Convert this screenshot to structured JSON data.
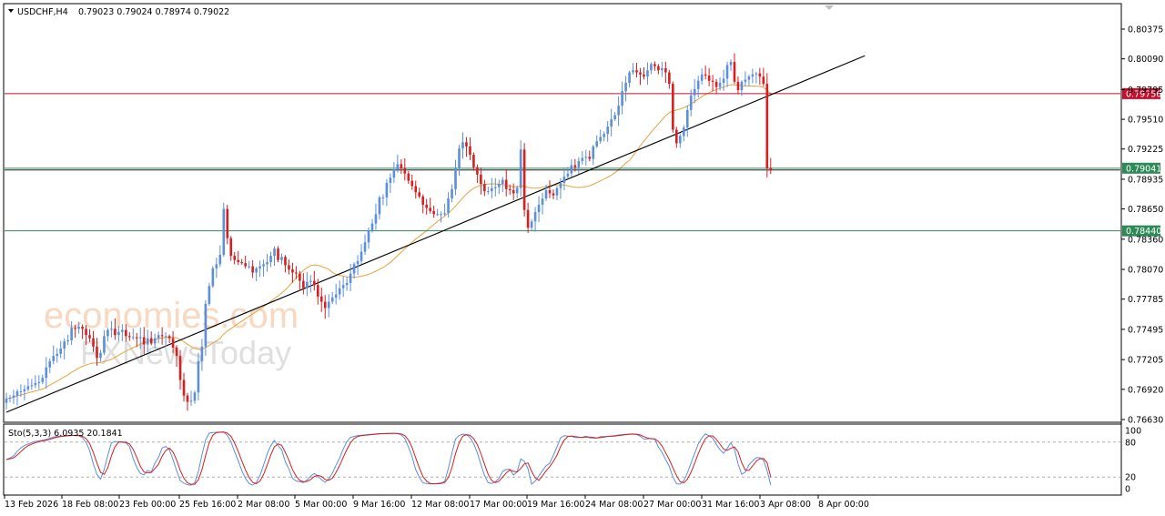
{
  "chart_data": [
    {
      "type": "candlestick",
      "symbol": "USDCHF,H4",
      "ohlc_header": "0.79023 0.79024 0.78974 0.79022",
      "x_tick_labels": [
        "13 Feb 2026",
        "18 Feb 08:00",
        "23 Feb 00:00",
        "25 Feb 16:00",
        "2 Mar 08:00",
        "5 Mar 00:00",
        "9 Mar 16:00",
        "12 Mar 08:00",
        "17 Mar 00:00",
        "19 Mar 16:00",
        "24 Mar 08:00",
        "27 Mar 00:00",
        "31 Mar 16:00",
        "3 Apr 08:00",
        "8 Apr 00:00"
      ],
      "y_tick_labels": [
        "0.80375",
        "0.80090",
        "0.79795",
        "0.79510",
        "0.79225",
        "0.78935",
        "0.78650",
        "0.78360",
        "0.78070",
        "0.77785",
        "0.77495",
        "0.77205",
        "0.76920",
        "0.76630"
      ],
      "ylim": [
        0.7663,
        0.8045
      ],
      "horizontal_levels": [
        {
          "label": "0.79756",
          "value": 0.79756,
          "color": "#c8102e"
        },
        {
          "label": "0.79041",
          "value": 0.79041,
          "color": "#2e8b57"
        },
        {
          "label": "0.78440",
          "value": 0.7844,
          "color": "#2e8b57"
        }
      ],
      "trendline": {
        "from": [
          0,
          0.767
        ],
        "to": [
          237,
          0.8012
        ],
        "color": "#000000"
      },
      "moving_average_color": "#e8a33c",
      "bull_color": "#5b8fd9",
      "bear_color": "#d81e1e",
      "closes": [
        0.7683,
        0.7684,
        0.7686,
        0.769,
        0.769,
        0.7692,
        0.7695,
        0.7696,
        0.7698,
        0.7699,
        0.7703,
        0.7713,
        0.7719,
        0.7724,
        0.7726,
        0.7731,
        0.7738,
        0.7739,
        0.7751,
        0.775,
        0.7752,
        0.775,
        0.7744,
        0.7741,
        0.7733,
        0.7722,
        0.7727,
        0.7743,
        0.7749,
        0.775,
        0.7744,
        0.7747,
        0.7749,
        0.7743,
        0.7742,
        0.7742,
        0.7741,
        0.7742,
        0.7735,
        0.7741,
        0.7736,
        0.7741,
        0.7744,
        0.7743,
        0.7743,
        0.7741,
        0.7732,
        0.7724,
        0.7701,
        0.7686,
        0.768,
        0.7681,
        0.7689,
        0.7719,
        0.7733,
        0.7774,
        0.7791,
        0.7808,
        0.7812,
        0.7821,
        0.7865,
        0.7837,
        0.782,
        0.7816,
        0.7814,
        0.7813,
        0.781,
        0.781,
        0.7804,
        0.7808,
        0.781,
        0.7812,
        0.7814,
        0.782,
        0.7827,
        0.7816,
        0.7819,
        0.7811,
        0.7807,
        0.7804,
        0.7803,
        0.7796,
        0.7789,
        0.7795,
        0.7796,
        0.7792,
        0.7781,
        0.7776,
        0.777,
        0.7776,
        0.778,
        0.7783,
        0.7789,
        0.7792,
        0.7794,
        0.7803,
        0.7812,
        0.7815,
        0.7824,
        0.7833,
        0.7844,
        0.7851,
        0.786,
        0.7876,
        0.7876,
        0.789,
        0.7895,
        0.7903,
        0.7908,
        0.7904,
        0.7899,
        0.7892,
        0.7887,
        0.7881,
        0.7877,
        0.7869,
        0.7866,
        0.7863,
        0.786,
        0.786,
        0.786,
        0.7861,
        0.7875,
        0.7884,
        0.7904,
        0.7923,
        0.7929,
        0.7925,
        0.7917,
        0.7905,
        0.7898,
        0.7889,
        0.7882,
        0.7882,
        0.7885,
        0.7886,
        0.7889,
        0.7893,
        0.7884,
        0.7883,
        0.788,
        0.7885,
        0.7922,
        0.7864,
        0.7847,
        0.7853,
        0.7862,
        0.7869,
        0.7875,
        0.7883,
        0.788,
        0.7878,
        0.7885,
        0.789,
        0.7896,
        0.7899,
        0.7907,
        0.7905,
        0.7911,
        0.7914,
        0.7915,
        0.7913,
        0.7925,
        0.793,
        0.7934,
        0.7937,
        0.7944,
        0.7951,
        0.7955,
        0.7964,
        0.7978,
        0.7986,
        0.7996,
        0.7998,
        0.7996,
        0.7994,
        0.7992,
        0.7998,
        0.8004,
        0.8002,
        0.7998,
        0.8,
        0.7996,
        0.7985,
        0.7941,
        0.7928,
        0.7935,
        0.7943,
        0.796,
        0.7974,
        0.798,
        0.7988,
        0.7994,
        0.7993,
        0.7988,
        0.7987,
        0.7982,
        0.7986,
        0.799,
        0.8003,
        0.8006,
        0.7987,
        0.7979,
        0.7987,
        0.7989,
        0.7992,
        0.7994,
        0.7995,
        0.7992,
        0.7985,
        0.7904,
        0.7902
      ],
      "stochastic": {
        "label": "Sto(5,3,3) 6.0935 20.1841",
        "main": 6.0935,
        "signal": 20.1841,
        "levels": [
          80,
          20
        ],
        "y_tick_labels": [
          "100",
          "80",
          "20",
          "0"
        ],
        "main_color": "#5b8fd9",
        "signal_color": "#d81e1e"
      }
    }
  ],
  "watermark": {
    "line1": "economies.com",
    "line2": "FXNewsToday"
  },
  "colors": {
    "background": "#ffffff",
    "frame": "#000000",
    "grid_dash": "#b0b0b0"
  }
}
